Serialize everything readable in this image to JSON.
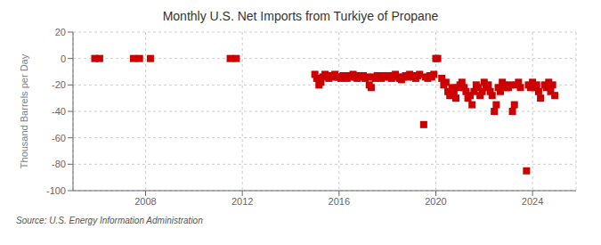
{
  "chart_data": {
    "type": "scatter",
    "title": "Monthly U.S. Net Imports from Turkiye of Propane",
    "y_label": "Thousand Barrels per Day",
    "annotations": [
      "Source: U.S. Energy Information Administration"
    ],
    "color": "#cc0000",
    "marker": "square",
    "grid": true,
    "xlim": [
      2005.0,
      2025.8
    ],
    "xticks": [
      2008,
      2012,
      2016,
      2020,
      2024
    ],
    "ylim": [
      -100,
      20
    ],
    "yticks": [
      -100,
      -80,
      -60,
      -40,
      -20,
      0,
      20
    ],
    "x": [
      2005.9,
      2006.1,
      2007.5,
      2007.75,
      2008.2,
      2011.5,
      2011.75,
      2015.0,
      2015.08,
      2015.17,
      2015.25,
      2015.33,
      2015.42,
      2015.5,
      2015.58,
      2015.67,
      2015.75,
      2015.83,
      2015.92,
      2016.0,
      2016.08,
      2016.17,
      2016.25,
      2016.33,
      2016.42,
      2016.5,
      2016.58,
      2016.67,
      2016.75,
      2016.83,
      2016.92,
      2017.0,
      2017.08,
      2017.17,
      2017.25,
      2017.33,
      2017.42,
      2017.5,
      2017.58,
      2017.67,
      2017.75,
      2017.83,
      2017.92,
      2018.0,
      2018.08,
      2018.17,
      2018.25,
      2018.33,
      2018.42,
      2018.5,
      2018.58,
      2018.67,
      2018.75,
      2018.83,
      2018.92,
      2019.0,
      2019.08,
      2019.17,
      2019.25,
      2019.33,
      2019.5,
      2019.58,
      2019.67,
      2019.75,
      2019.83,
      2019.92,
      2020.0,
      2020.08,
      2020.25,
      2020.33,
      2020.42,
      2020.5,
      2020.58,
      2020.67,
      2020.75,
      2020.83,
      2020.92,
      2021.0,
      2021.08,
      2021.17,
      2021.25,
      2021.33,
      2021.42,
      2021.5,
      2021.58,
      2021.67,
      2021.75,
      2021.83,
      2021.92,
      2022.0,
      2022.08,
      2022.17,
      2022.25,
      2022.33,
      2022.42,
      2022.5,
      2022.58,
      2022.67,
      2022.75,
      2022.83,
      2022.92,
      2023.0,
      2023.08,
      2023.17,
      2023.25,
      2023.33,
      2023.42,
      2023.5,
      2023.75,
      2023.83,
      2023.92,
      2024.0,
      2024.08,
      2024.17,
      2024.25,
      2024.33,
      2024.5,
      2024.58,
      2024.67,
      2024.75,
      2024.83,
      2024.92
    ],
    "values": [
      0,
      0,
      0,
      0,
      0,
      0,
      0,
      -12,
      -15,
      -20,
      -18,
      -14,
      -12,
      -13,
      -15,
      -13,
      -14,
      -12,
      -14,
      -14,
      -15,
      -13,
      -14,
      -15,
      -13,
      -14,
      -12,
      -14,
      -15,
      -13,
      -14,
      -13,
      -15,
      -14,
      -20,
      -22,
      -14,
      -15,
      -13,
      -14,
      -15,
      -13,
      -14,
      -13,
      -14,
      -15,
      -13,
      -12,
      -14,
      -15,
      -16,
      -14,
      -13,
      -14,
      -12,
      -13,
      -14,
      -15,
      -13,
      -12,
      -50,
      -14,
      -15,
      -13,
      -14,
      -12,
      0,
      0,
      -15,
      -20,
      -18,
      -25,
      -28,
      -22,
      -25,
      -30,
      -22,
      -20,
      -18,
      -22,
      -25,
      -30,
      -28,
      -35,
      -25,
      -20,
      -22,
      -28,
      -25,
      -18,
      -22,
      -20,
      -25,
      -28,
      -40,
      -35,
      -22,
      -25,
      -18,
      -20,
      -22,
      -22,
      -20,
      -40,
      -35,
      -20,
      -18,
      -22,
      -85,
      -20,
      -22,
      -18,
      -22,
      -20,
      -25,
      -30,
      -20,
      -22,
      -18,
      -25,
      -20,
      -28
    ]
  }
}
